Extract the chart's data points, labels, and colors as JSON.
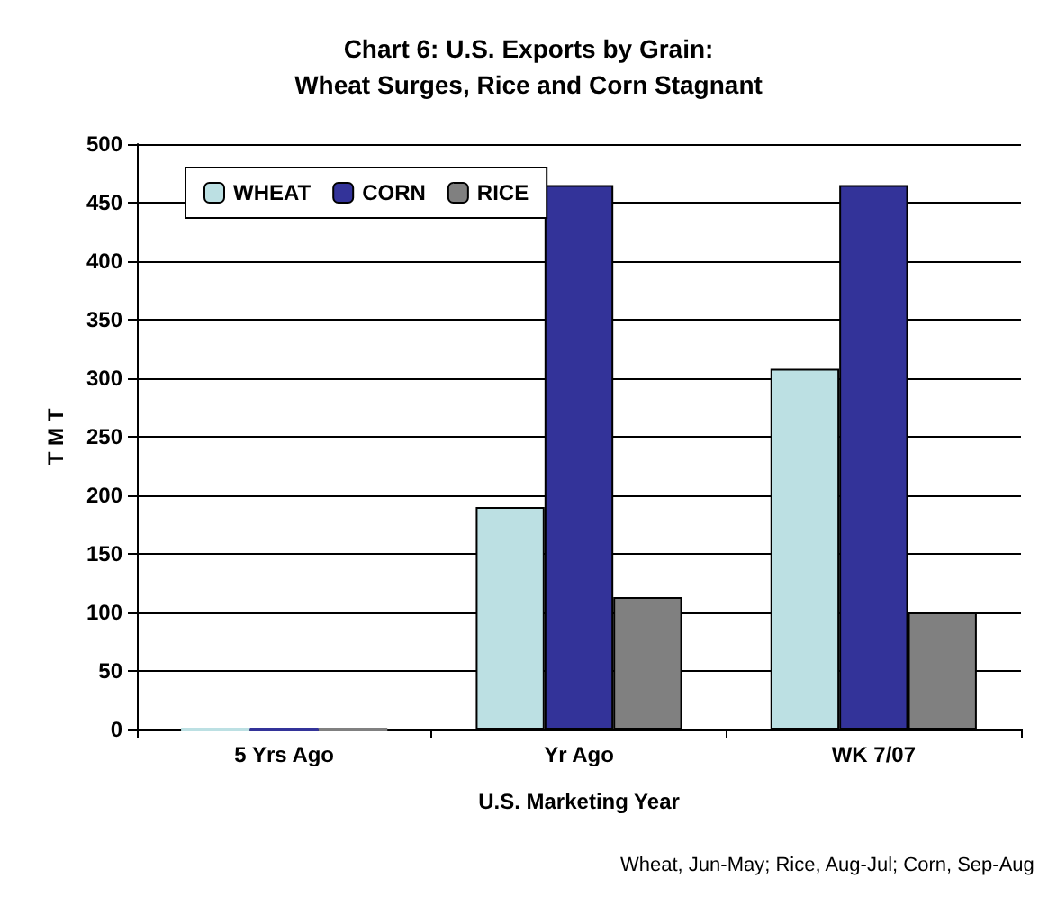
{
  "chart_data": {
    "type": "bar",
    "title": "Chart 6: U.S. Exports by Grain:\nWheat Surges, Rice and Corn Stagnant",
    "xlabel": "U.S. Marketing Year",
    "ylabel": "T M T",
    "categories": [
      "5 Yrs Ago",
      "Yr Ago",
      "WK 7/07"
    ],
    "series": [
      {
        "name": "WHEAT",
        "color": "#bce0e3",
        "values": [
          0,
          190,
          308
        ]
      },
      {
        "name": "CORN",
        "color": "#333399",
        "values": [
          0,
          465,
          465
        ]
      },
      {
        "name": "RICE",
        "color": "#808080",
        "values": [
          0,
          113,
          100
        ]
      }
    ],
    "ylim": [
      0,
      500
    ],
    "yticks": [
      0,
      50,
      100,
      150,
      200,
      250,
      300,
      350,
      400,
      450,
      500
    ],
    "grid": "y",
    "legend": "top left",
    "annotations": [
      "Wheat, Jun-May; Rice, Aug-Jul; Corn, Sep-Aug"
    ]
  }
}
